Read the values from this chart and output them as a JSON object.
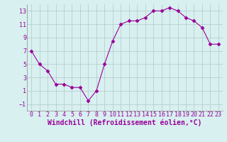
{
  "x": [
    0,
    1,
    2,
    3,
    4,
    5,
    6,
    7,
    8,
    9,
    10,
    11,
    12,
    13,
    14,
    15,
    16,
    17,
    18,
    19,
    20,
    21,
    22,
    23
  ],
  "y": [
    7,
    5,
    4,
    2,
    2,
    1.5,
    1.5,
    -0.5,
    1,
    5,
    8.5,
    11,
    11.5,
    11.5,
    12,
    13,
    13,
    13.5,
    13,
    12,
    11.5,
    10.5,
    8,
    8
  ],
  "line_color": "#990099",
  "marker": "D",
  "marker_size": 2.5,
  "bg_color": "#d8f0f0",
  "grid_color": "#b0c8c8",
  "xlabel": "Windchill (Refroidissement éolien,°C)",
  "xlabel_color": "#990099",
  "xlabel_fontsize": 7,
  "tick_color": "#990099",
  "tick_fontsize": 6,
  "ylim": [
    -2,
    14
  ],
  "xlim": [
    -0.5,
    23.5
  ],
  "yticks": [
    -1,
    1,
    3,
    5,
    7,
    9,
    11,
    13
  ],
  "xticks": [
    0,
    1,
    2,
    3,
    4,
    5,
    6,
    7,
    8,
    9,
    10,
    11,
    12,
    13,
    14,
    15,
    16,
    17,
    18,
    19,
    20,
    21,
    22,
    23
  ]
}
